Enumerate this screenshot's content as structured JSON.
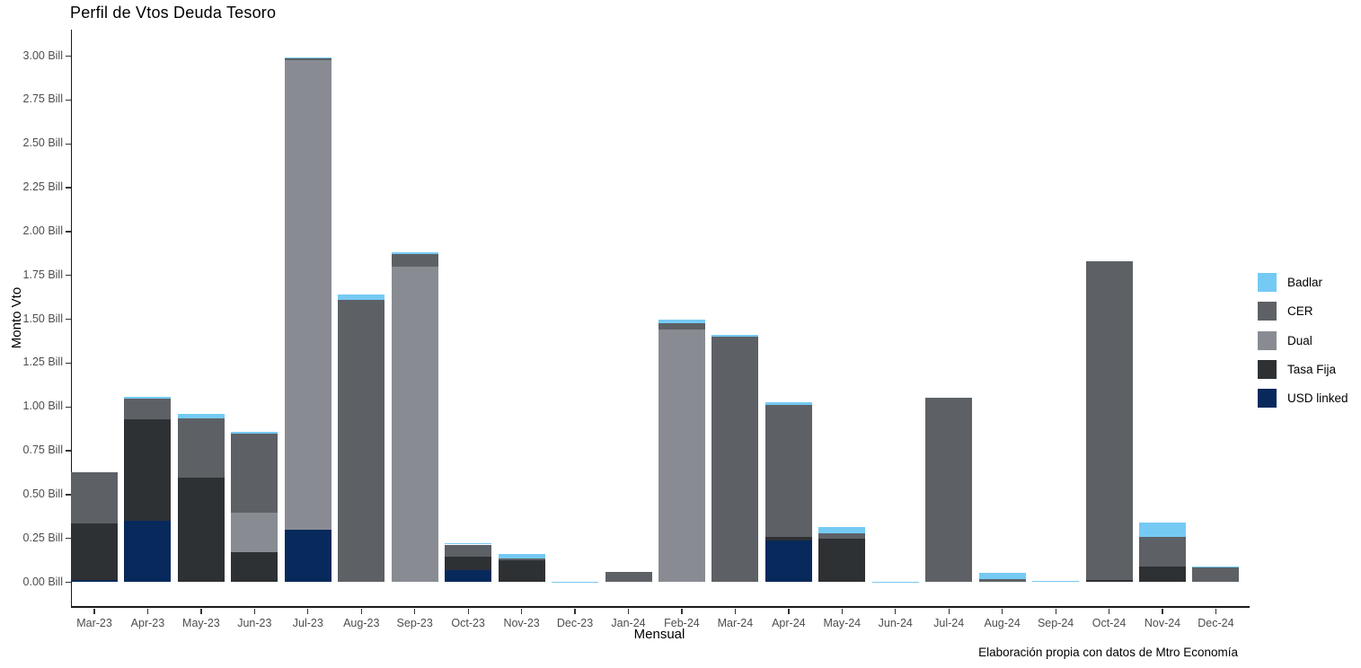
{
  "title": "Perfil de Vtos Deuda Tesoro",
  "axes": {
    "x_label": "Mensual",
    "y_label": "Monto Vto",
    "y_ticks": [
      "0.00 Bill",
      "0.25 Bill",
      "0.50 Bill",
      "0.75 Bill",
      "1.00 Bill",
      "1.25 Bill",
      "1.50 Bill",
      "1.75 Bill",
      "2.00 Bill",
      "2.25 Bill",
      "2.50 Bill",
      "2.75 Bill",
      "3.00 Bill"
    ]
  },
  "footer": "Elaboración propia con datos de Mtro Economía",
  "legend": {
    "position": "right",
    "items": [
      {
        "label": "Badlar",
        "color": "#75CAF4"
      },
      {
        "label": "CER",
        "color": "#5D6166"
      },
      {
        "label": "Dual",
        "color": "#888C92"
      },
      {
        "label": "Tasa Fija",
        "color": "#2E3134"
      },
      {
        "label": "USD linked",
        "color": "#07295C"
      }
    ]
  },
  "chart_data": {
    "type": "bar",
    "stacked": true,
    "title": "Perfil de Vtos Deuda Tesoro",
    "xlabel": "Mensual",
    "ylabel": "Monto Vto",
    "unit": "Bill",
    "ylim": [
      0,
      3.05
    ],
    "y_tick_step": 0.25,
    "grid": false,
    "legend_position": "right",
    "categories": [
      "Mar-23",
      "Apr-23",
      "May-23",
      "Jun-23",
      "Jul-23",
      "Aug-23",
      "Sep-23",
      "Oct-23",
      "Nov-23",
      "Dec-23",
      "Jan-24",
      "Feb-24",
      "Mar-24",
      "Apr-24",
      "May-24",
      "Jun-24",
      "Jul-24",
      "Aug-24",
      "Sep-24",
      "Oct-24",
      "Nov-24",
      "Dec-24"
    ],
    "stack_order_note": "series listed bottom-to-top of each stacked bar; values in billions (Bill)",
    "series": [
      {
        "name": "USD linked",
        "color": "#07295C",
        "values": [
          0.015,
          0.35,
          0,
          0,
          0.3,
          0,
          0,
          0.07,
          0,
          0,
          0,
          0,
          0,
          0.24,
          0,
          0,
          0,
          0,
          0,
          0,
          0,
          0
        ]
      },
      {
        "name": "Tasa Fija",
        "color": "#2E3134",
        "values": [
          0.32,
          0.58,
          0.595,
          0.17,
          0,
          0,
          0,
          0.075,
          0.125,
          0,
          0,
          0,
          0,
          0.02,
          0.25,
          0,
          0,
          0,
          0,
          0.012,
          0.09,
          0
        ]
      },
      {
        "name": "Dual",
        "color": "#888C92",
        "values": [
          0,
          0,
          0,
          0.225,
          2.675,
          0,
          1.8,
          0,
          0,
          0,
          0,
          1.44,
          0,
          0,
          0,
          0,
          0,
          0,
          0,
          0,
          0,
          0
        ]
      },
      {
        "name": "CER",
        "color": "#5D6166",
        "values": [
          0.29,
          0.115,
          0.34,
          0.45,
          0.015,
          1.61,
          0.07,
          0.07,
          0.01,
          0,
          0.06,
          0.035,
          1.4,
          0.75,
          0.03,
          0,
          1.05,
          0.02,
          0,
          1.82,
          0.17,
          0.082
        ]
      },
      {
        "name": "Badlar",
        "color": "#75CAF4",
        "values": [
          0,
          0.01,
          0.025,
          0.015,
          0.005,
          0.03,
          0.01,
          0.01,
          0.025,
          0.005,
          0,
          0.025,
          0.01,
          0.015,
          0.035,
          0.005,
          0,
          0.035,
          0.007,
          0,
          0.08,
          0.008
        ]
      }
    ],
    "totals": [
      0.625,
      1.055,
      0.96,
      0.86,
      2.995,
      1.64,
      1.88,
      0.225,
      0.16,
      0.005,
      0.06,
      1.5,
      1.41,
      1.025,
      0.315,
      0.005,
      1.05,
      0.055,
      0.007,
      1.832,
      0.34,
      0.09
    ]
  }
}
